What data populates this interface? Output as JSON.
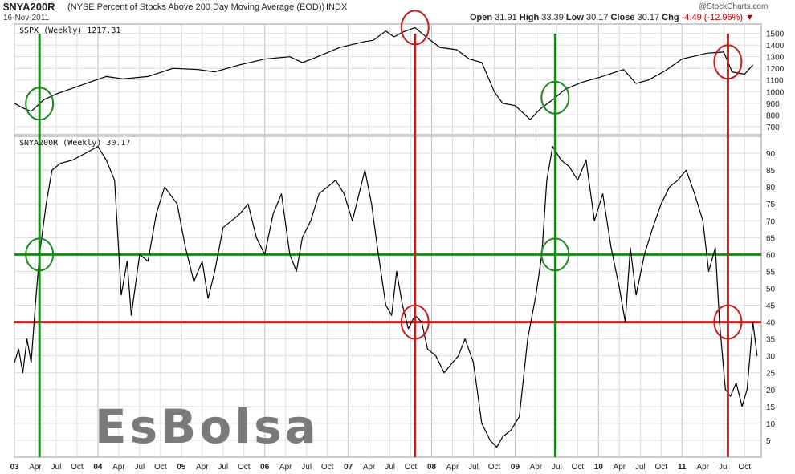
{
  "header": {
    "symbol": "$NYA200R",
    "description": "(NYSE Percent of Stocks Above 200 Day Moving Average (EOD))",
    "exchange": "INDX",
    "date": "16-Nov-2011",
    "open_label": "Open",
    "open": "31.91",
    "high_label": "High",
    "high": "33.39",
    "low_label": "Low",
    "low": "30.17",
    "close_label": "Close",
    "close": "30.17",
    "chg_label": "Chg",
    "chg": "-4.49 (-12.96%)",
    "chg_marker": "▼",
    "brand": "@StockCharts.com"
  },
  "watermark": "EsBolsa",
  "colors": {
    "green": "#1a8a1a",
    "red": "#c41e1e",
    "grid": "#dcdcdc",
    "line": "#000000"
  },
  "chart_data": [
    {
      "type": "line",
      "label": "$SPX (Weekly) 1217.31",
      "yticks": [
        700,
        800,
        900,
        1000,
        1100,
        1200,
        1300,
        1400,
        1500
      ],
      "ylim": [
        630,
        1580
      ],
      "x": [
        2003.0,
        2003.1,
        2003.2,
        2003.35,
        2003.5,
        2003.7,
        2003.9,
        2004.1,
        2004.3,
        2004.6,
        2004.9,
        2005.2,
        2005.4,
        2005.7,
        2006.0,
        2006.3,
        2006.45,
        2006.6,
        2006.9,
        2007.2,
        2007.3,
        2007.45,
        2007.55,
        2007.65,
        2007.8,
        2007.95,
        2008.1,
        2008.3,
        2008.45,
        2008.6,
        2008.75,
        2008.85,
        2009.0,
        2009.18,
        2009.3,
        2009.45,
        2009.6,
        2009.8,
        2010.0,
        2010.3,
        2010.45,
        2010.6,
        2010.8,
        2011.0,
        2011.3,
        2011.5,
        2011.6,
        2011.75,
        2011.85
      ],
      "values": [
        900,
        860,
        830,
        930,
        980,
        1030,
        1080,
        1130,
        1110,
        1130,
        1200,
        1190,
        1170,
        1230,
        1280,
        1300,
        1250,
        1290,
        1380,
        1430,
        1440,
        1520,
        1470,
        1510,
        1550,
        1460,
        1380,
        1360,
        1280,
        1250,
        1000,
        900,
        880,
        760,
        850,
        930,
        1020,
        1080,
        1120,
        1190,
        1070,
        1100,
        1180,
        1280,
        1330,
        1340,
        1170,
        1150,
        1230
      ],
      "annotations_green_x": [
        2003.3,
        2009.48
      ],
      "annotations_red_x": [
        2007.8,
        2011.55
      ]
    },
    {
      "type": "line",
      "label": "$NYA200R (Weekly) 30.17",
      "yticks": [
        5,
        10,
        15,
        20,
        25,
        30,
        35,
        40,
        45,
        50,
        55,
        60,
        65,
        70,
        75,
        80,
        85,
        90
      ],
      "ylim": [
        0,
        95
      ],
      "hlines": [
        60,
        40
      ],
      "x": [
        2003.0,
        2003.05,
        2003.1,
        2003.15,
        2003.2,
        2003.25,
        2003.3,
        2003.38,
        2003.45,
        2003.55,
        2003.7,
        2003.85,
        2004.0,
        2004.1,
        2004.2,
        2004.28,
        2004.35,
        2004.4,
        2004.5,
        2004.6,
        2004.7,
        2004.8,
        2004.95,
        2005.05,
        2005.15,
        2005.25,
        2005.32,
        2005.4,
        2005.5,
        2005.6,
        2005.7,
        2005.8,
        2005.9,
        2006.0,
        2006.1,
        2006.2,
        2006.3,
        2006.38,
        2006.45,
        2006.55,
        2006.65,
        2006.75,
        2006.85,
        2006.95,
        2007.05,
        2007.15,
        2007.2,
        2007.28,
        2007.35,
        2007.45,
        2007.52,
        2007.58,
        2007.65,
        2007.72,
        2007.8,
        2007.88,
        2007.95,
        2008.05,
        2008.15,
        2008.25,
        2008.32,
        2008.4,
        2008.5,
        2008.6,
        2008.7,
        2008.78,
        2008.85,
        2008.95,
        2009.05,
        2009.15,
        2009.25,
        2009.32,
        2009.38,
        2009.45,
        2009.55,
        2009.65,
        2009.75,
        2009.85,
        2009.95,
        2010.05,
        2010.15,
        2010.25,
        2010.32,
        2010.38,
        2010.45,
        2010.55,
        2010.65,
        2010.75,
        2010.85,
        2010.95,
        2011.05,
        2011.15,
        2011.25,
        2011.32,
        2011.4,
        2011.45,
        2011.52,
        2011.58,
        2011.65,
        2011.72,
        2011.78,
        2011.85,
        2011.9
      ],
      "values": [
        28,
        32,
        25,
        35,
        28,
        45,
        60,
        75,
        85,
        87,
        88,
        90,
        92,
        88,
        82,
        48,
        58,
        42,
        60,
        58,
        72,
        80,
        75,
        62,
        52,
        58,
        47,
        55,
        68,
        70,
        72,
        75,
        65,
        60,
        72,
        78,
        60,
        55,
        65,
        70,
        78,
        80,
        82,
        78,
        70,
        80,
        85,
        75,
        62,
        45,
        42,
        55,
        45,
        38,
        42,
        40,
        32,
        30,
        25,
        28,
        30,
        35,
        28,
        10,
        5,
        3,
        6,
        8,
        12,
        35,
        48,
        60,
        82,
        92,
        88,
        86,
        82,
        88,
        70,
        78,
        62,
        50,
        40,
        62,
        48,
        60,
        68,
        75,
        80,
        82,
        85,
        78,
        70,
        55,
        62,
        40,
        20,
        18,
        22,
        15,
        20,
        40,
        30
      ],
      "annotations_green_x": [
        2003.3,
        2009.48
      ],
      "annotations_red_x": [
        2007.8,
        2011.55
      ]
    }
  ],
  "x_axis": {
    "start": 2003.0,
    "end": 2011.95,
    "ticks": [
      {
        "x": 2003.0,
        "label": "03",
        "major": true
      },
      {
        "x": 2003.25,
        "label": "Apr"
      },
      {
        "x": 2003.5,
        "label": "Jul"
      },
      {
        "x": 2003.75,
        "label": "Oct"
      },
      {
        "x": 2004.0,
        "label": "04",
        "major": true
      },
      {
        "x": 2004.25,
        "label": "Apr"
      },
      {
        "x": 2004.5,
        "label": "Jul"
      },
      {
        "x": 2004.75,
        "label": "Oct"
      },
      {
        "x": 2005.0,
        "label": "05",
        "major": true
      },
      {
        "x": 2005.25,
        "label": "Apr"
      },
      {
        "x": 2005.5,
        "label": "Jul"
      },
      {
        "x": 2005.75,
        "label": "Oct"
      },
      {
        "x": 2006.0,
        "label": "06",
        "major": true
      },
      {
        "x": 2006.25,
        "label": "Apr"
      },
      {
        "x": 2006.5,
        "label": "Jul"
      },
      {
        "x": 2006.75,
        "label": "Oct"
      },
      {
        "x": 2007.0,
        "label": "07",
        "major": true
      },
      {
        "x": 2007.25,
        "label": "Apr"
      },
      {
        "x": 2007.5,
        "label": "Jul"
      },
      {
        "x": 2007.75,
        "label": "Oct"
      },
      {
        "x": 2008.0,
        "label": "08",
        "major": true
      },
      {
        "x": 2008.25,
        "label": "Apr"
      },
      {
        "x": 2008.5,
        "label": "Jul"
      },
      {
        "x": 2008.75,
        "label": "Oct"
      },
      {
        "x": 2009.0,
        "label": "09",
        "major": true
      },
      {
        "x": 2009.25,
        "label": "Apr"
      },
      {
        "x": 2009.5,
        "label": "Jul"
      },
      {
        "x": 2009.75,
        "label": "Oct"
      },
      {
        "x": 2010.0,
        "label": "10",
        "major": true
      },
      {
        "x": 2010.25,
        "label": "Apr"
      },
      {
        "x": 2010.5,
        "label": "Jul"
      },
      {
        "x": 2010.75,
        "label": "Oct"
      },
      {
        "x": 2011.0,
        "label": "11",
        "major": true
      },
      {
        "x": 2011.25,
        "label": "Apr"
      },
      {
        "x": 2011.5,
        "label": "Jul"
      },
      {
        "x": 2011.75,
        "label": "Oct"
      }
    ]
  }
}
